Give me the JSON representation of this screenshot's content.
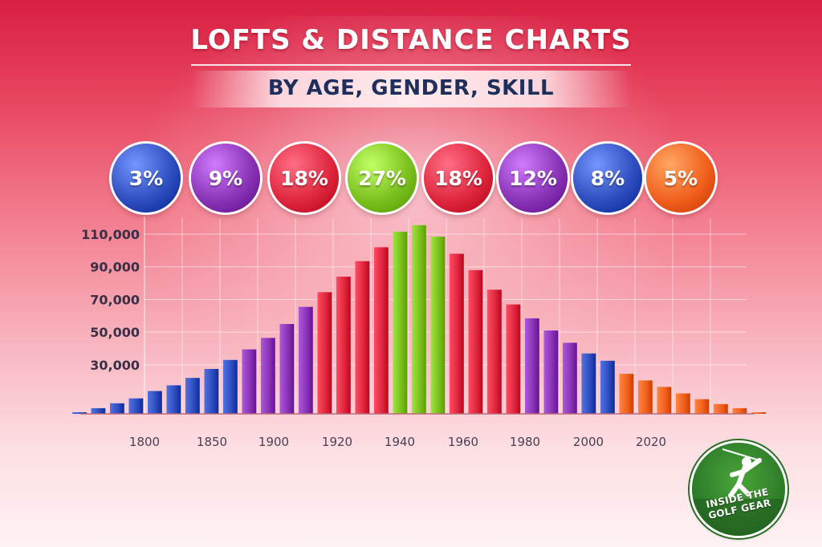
{
  "header": {
    "title": "LOFTS & DISTANCE CHARTS",
    "subtitle": "BY AGE, GENDER, SKILL"
  },
  "colors": {
    "blue": "#2f4fc0",
    "purple": "#8a34b8",
    "red": "#e0283f",
    "green": "#7cc21f",
    "orange": "#f2611e",
    "ytext": "#3a2f46",
    "xtext": "#4a3f52"
  },
  "bubbles": [
    {
      "label": "3%",
      "color": "blue"
    },
    {
      "label": "9%",
      "color": "purple"
    },
    {
      "label": "18%",
      "color": "red"
    },
    {
      "label": "27%",
      "color": "green"
    },
    {
      "label": "18%",
      "color": "red"
    },
    {
      "label": "12%",
      "color": "purple"
    },
    {
      "label": "8%",
      "color": "blue"
    },
    {
      "label": "5%",
      "color": "orange"
    }
  ],
  "logo": {
    "text": "INSIDE THE GOLF GEAR",
    "icon": "golfer-icon"
  },
  "chart_data": {
    "type": "bar",
    "title": "LOFTS & DISTANCE CHARTS",
    "subtitle": "BY AGE, GENDER, SKILL",
    "xlabel": "",
    "ylabel": "",
    "ylim": [
      0,
      120000
    ],
    "grid": true,
    "y_ticks": [
      "30,000",
      "50,000",
      "70,000",
      "90,000",
      "110,000"
    ],
    "y_tick_values": [
      30000,
      50000,
      70000,
      90000,
      110000
    ],
    "x_tick_labels": [
      "1800",
      "1850",
      "1900",
      "1920",
      "1940",
      "1960",
      "1980",
      "2000",
      "2020"
    ],
    "values": [
      1000,
      3500,
      6500,
      9500,
      14000,
      17500,
      22000,
      27500,
      33000,
      39500,
      46500,
      55000,
      65500,
      74500,
      84000,
      93500,
      102000,
      111500,
      115500,
      108500,
      98000,
      88000,
      76000,
      67000,
      58500,
      51000,
      43500,
      37000,
      32500,
      24500,
      20500,
      16500,
      12500,
      9000,
      6000,
      3500,
      1000
    ],
    "bar_colors": [
      "blue",
      "blue",
      "blue",
      "blue",
      "blue",
      "blue",
      "blue",
      "blue",
      "blue",
      "purple",
      "purple",
      "purple",
      "purple",
      "red",
      "red",
      "red",
      "red",
      "green",
      "green",
      "green",
      "red",
      "red",
      "red",
      "red",
      "purple",
      "purple",
      "purple",
      "blue",
      "blue",
      "orange",
      "orange",
      "orange",
      "orange",
      "orange",
      "orange",
      "orange",
      "orange"
    ]
  }
}
